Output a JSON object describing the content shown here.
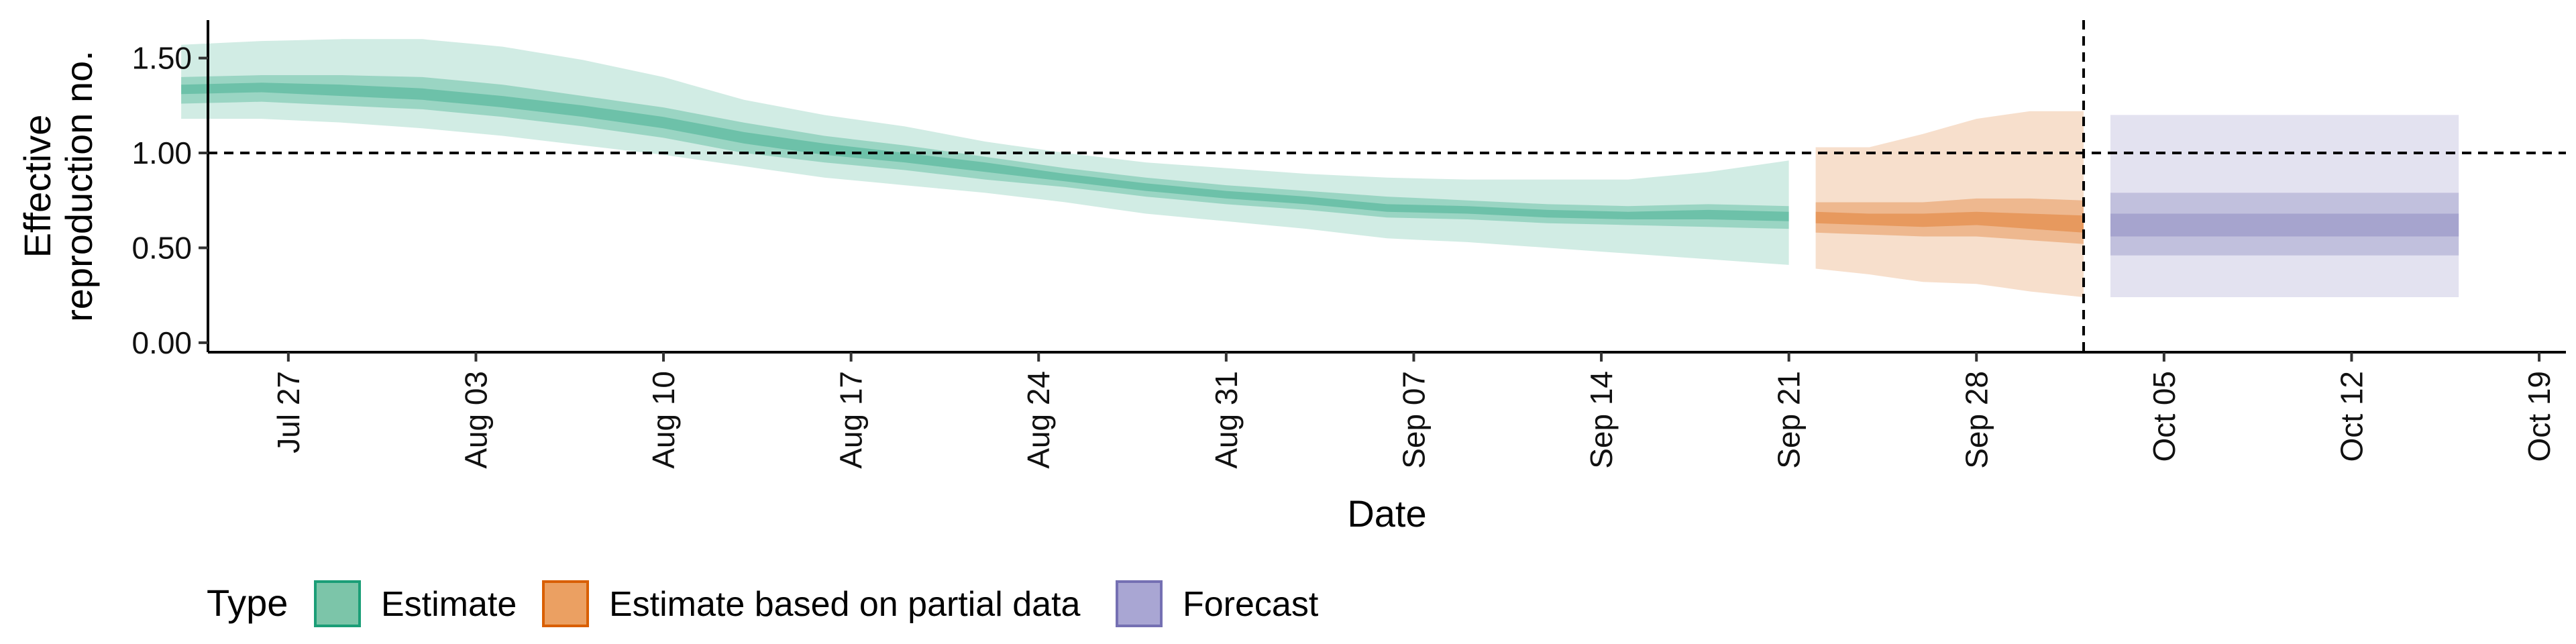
{
  "chart_data": {
    "type": "area",
    "xlabel": "Date",
    "ylabel_lines": [
      "Effective",
      "reproduction no."
    ],
    "ylim": [
      -0.05,
      1.7
    ],
    "yticks": [
      0.0,
      0.5,
      1.0,
      1.5
    ],
    "ytick_labels": [
      "0.00",
      "0.50",
      "1.00",
      "1.50"
    ],
    "x_start": "2020-07-24",
    "x_end": "2020-10-20",
    "xticks": [
      "2020-07-27",
      "2020-08-03",
      "2020-08-10",
      "2020-08-17",
      "2020-08-24",
      "2020-08-31",
      "2020-09-07",
      "2020-09-14",
      "2020-09-21",
      "2020-09-28",
      "2020-10-05",
      "2020-10-12",
      "2020-10-19"
    ],
    "xtick_labels": [
      "Jul 27",
      "Aug 03",
      "Aug 10",
      "Aug 17",
      "Aug 24",
      "Aug 31",
      "Sep 07",
      "Sep 14",
      "Sep 21",
      "Sep 28",
      "Oct 05",
      "Oct 12",
      "Oct 19"
    ],
    "hline": 1.0,
    "vline": "2020-10-02",
    "grid": false,
    "legend": {
      "title": "Type",
      "position": "bottom",
      "entries": [
        {
          "label": "Estimate",
          "fill": "#7cc5a9",
          "stroke": "#1b9e77"
        },
        {
          "label": "Estimate based on partial data",
          "fill": "#eba062",
          "stroke": "#d95f02"
        },
        {
          "label": "Forecast",
          "fill": "#a9a6d3",
          "stroke": "#7570b3"
        }
      ]
    },
    "series": [
      {
        "name": "Estimate",
        "color": "#1b9e77",
        "points": [
          {
            "date": "2020-07-23",
            "median": 1.33,
            "ci20": [
              1.31,
              1.36
            ],
            "ci50": [
              1.26,
              1.4
            ],
            "ci90": [
              1.18,
              1.57
            ]
          },
          {
            "date": "2020-07-26",
            "median": 1.34,
            "ci20": [
              1.32,
              1.37
            ],
            "ci50": [
              1.27,
              1.41
            ],
            "ci90": [
              1.18,
              1.59
            ]
          },
          {
            "date": "2020-07-29",
            "median": 1.33,
            "ci20": [
              1.3,
              1.36
            ],
            "ci50": [
              1.25,
              1.41
            ],
            "ci90": [
              1.16,
              1.6
            ]
          },
          {
            "date": "2020-08-01",
            "median": 1.31,
            "ci20": [
              1.28,
              1.34
            ],
            "ci50": [
              1.23,
              1.4
            ],
            "ci90": [
              1.13,
              1.6
            ]
          },
          {
            "date": "2020-08-04",
            "median": 1.27,
            "ci20": [
              1.24,
              1.3
            ],
            "ci50": [
              1.19,
              1.36
            ],
            "ci90": [
              1.09,
              1.56
            ]
          },
          {
            "date": "2020-08-07",
            "median": 1.22,
            "ci20": [
              1.19,
              1.25
            ],
            "ci50": [
              1.14,
              1.3
            ],
            "ci90": [
              1.04,
              1.49
            ]
          },
          {
            "date": "2020-08-10",
            "median": 1.16,
            "ci20": [
              1.13,
              1.19
            ],
            "ci50": [
              1.08,
              1.24
            ],
            "ci90": [
              0.99,
              1.4
            ]
          },
          {
            "date": "2020-08-13",
            "median": 1.08,
            "ci20": [
              1.05,
              1.11
            ],
            "ci50": [
              1.0,
              1.16
            ],
            "ci90": [
              0.93,
              1.28
            ]
          },
          {
            "date": "2020-08-16",
            "median": 1.02,
            "ci20": [
              0.99,
              1.05
            ],
            "ci50": [
              0.95,
              1.09
            ],
            "ci90": [
              0.87,
              1.2
            ]
          },
          {
            "date": "2020-08-19",
            "median": 0.97,
            "ci20": [
              0.95,
              1.0
            ],
            "ci50": [
              0.91,
              1.04
            ],
            "ci90": [
              0.83,
              1.14
            ]
          },
          {
            "date": "2020-08-22",
            "median": 0.92,
            "ci20": [
              0.9,
              0.95
            ],
            "ci50": [
              0.86,
              0.98
            ],
            "ci90": [
              0.79,
              1.06
            ]
          },
          {
            "date": "2020-08-25",
            "median": 0.87,
            "ci20": [
              0.85,
              0.89
            ],
            "ci50": [
              0.82,
              0.92
            ],
            "ci90": [
              0.74,
              1.0
            ]
          },
          {
            "date": "2020-08-28",
            "median": 0.82,
            "ci20": [
              0.8,
              0.84
            ],
            "ci50": [
              0.77,
              0.87
            ],
            "ci90": [
              0.68,
              0.95
            ]
          },
          {
            "date": "2020-08-31",
            "median": 0.78,
            "ci20": [
              0.76,
              0.8
            ],
            "ci50": [
              0.73,
              0.83
            ],
            "ci90": [
              0.64,
              0.92
            ]
          },
          {
            "date": "2020-09-03",
            "median": 0.75,
            "ci20": [
              0.73,
              0.77
            ],
            "ci50": [
              0.7,
              0.8
            ],
            "ci90": [
              0.6,
              0.89
            ]
          },
          {
            "date": "2020-09-06",
            "median": 0.71,
            "ci20": [
              0.69,
              0.73
            ],
            "ci50": [
              0.66,
              0.77
            ],
            "ci90": [
              0.55,
              0.87
            ]
          },
          {
            "date": "2020-09-09",
            "median": 0.7,
            "ci20": [
              0.68,
              0.72
            ],
            "ci50": [
              0.65,
              0.75
            ],
            "ci90": [
              0.53,
              0.86
            ]
          },
          {
            "date": "2020-09-12",
            "median": 0.68,
            "ci20": [
              0.66,
              0.7
            ],
            "ci50": [
              0.63,
              0.73
            ],
            "ci90": [
              0.5,
              0.86
            ]
          },
          {
            "date": "2020-09-15",
            "median": 0.67,
            "ci20": [
              0.65,
              0.69
            ],
            "ci50": [
              0.62,
              0.72
            ],
            "ci90": [
              0.47,
              0.86
            ]
          },
          {
            "date": "2020-09-18",
            "median": 0.67,
            "ci20": [
              0.65,
              0.7
            ],
            "ci50": [
              0.61,
              0.73
            ],
            "ci90": [
              0.44,
              0.9
            ]
          },
          {
            "date": "2020-09-21",
            "median": 0.66,
            "ci20": [
              0.64,
              0.69
            ],
            "ci50": [
              0.6,
              0.72
            ],
            "ci90": [
              0.41,
              0.96
            ]
          }
        ]
      },
      {
        "name": "Estimate based on partial data",
        "color": "#d95f02",
        "points": [
          {
            "date": "2020-09-22",
            "median": 0.66,
            "ci20": [
              0.63,
              0.69
            ],
            "ci50": [
              0.58,
              0.74
            ],
            "ci90": [
              0.39,
              1.03
            ]
          },
          {
            "date": "2020-09-24",
            "median": 0.65,
            "ci20": [
              0.62,
              0.68
            ],
            "ci50": [
              0.57,
              0.74
            ],
            "ci90": [
              0.36,
              1.03
            ]
          },
          {
            "date": "2020-09-26",
            "median": 0.64,
            "ci20": [
              0.61,
              0.68
            ],
            "ci50": [
              0.56,
              0.74
            ],
            "ci90": [
              0.32,
              1.1
            ]
          },
          {
            "date": "2020-09-28",
            "median": 0.65,
            "ci20": [
              0.62,
              0.69
            ],
            "ci50": [
              0.56,
              0.76
            ],
            "ci90": [
              0.31,
              1.18
            ]
          },
          {
            "date": "2020-09-30",
            "median": 0.64,
            "ci20": [
              0.6,
              0.68
            ],
            "ci50": [
              0.54,
              0.76
            ],
            "ci90": [
              0.27,
              1.22
            ]
          },
          {
            "date": "2020-10-02",
            "median": 0.62,
            "ci20": [
              0.58,
              0.67
            ],
            "ci50": [
              0.52,
              0.75
            ],
            "ci90": [
              0.24,
              1.22
            ]
          }
        ]
      },
      {
        "name": "Forecast",
        "color": "#7570b3",
        "points": [
          {
            "date": "2020-10-03",
            "median": 0.62,
            "ci20": [
              0.56,
              0.68
            ],
            "ci50": [
              0.46,
              0.79
            ],
            "ci90": [
              0.24,
              1.2
            ]
          },
          {
            "date": "2020-10-16",
            "median": 0.62,
            "ci20": [
              0.56,
              0.68
            ],
            "ci50": [
              0.46,
              0.79
            ],
            "ci90": [
              0.24,
              1.2
            ]
          }
        ]
      }
    ]
  }
}
